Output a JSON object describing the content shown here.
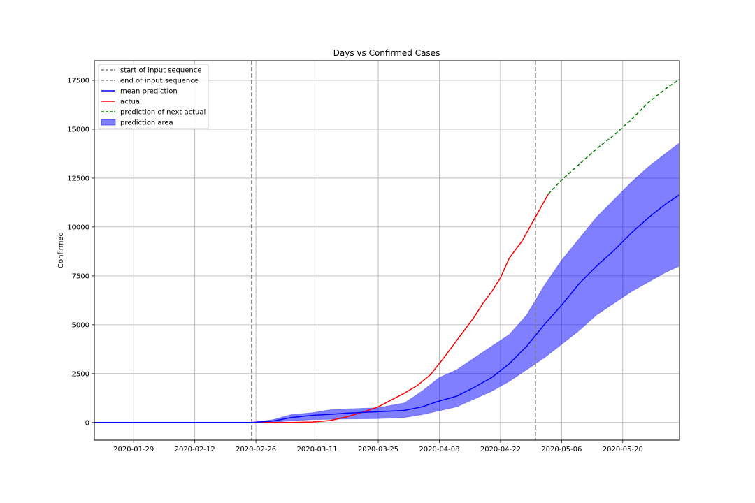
{
  "chart_data": {
    "type": "line",
    "title": "Days vs Confirmed Cases",
    "xlabel": "",
    "ylabel": "Confirmed",
    "x_axis": {
      "type": "date",
      "range": [
        "2020-01-20",
        "2020-06-02"
      ],
      "ticks": [
        "2020-01-29",
        "2020-02-12",
        "2020-02-26",
        "2020-03-11",
        "2020-03-25",
        "2020-04-08",
        "2020-04-22",
        "2020-05-06",
        "2020-05-20"
      ]
    },
    "y_axis": {
      "range": [
        -900,
        18500
      ],
      "ticks": [
        0,
        2500,
        5000,
        7500,
        10000,
        12500,
        15000,
        17500
      ],
      "tick_labels": [
        "0",
        "2500",
        "5000",
        "7500",
        "10000",
        "12500",
        "15000",
        "17500"
      ]
    },
    "grid": true,
    "legend_position": "top-left",
    "vertical_lines": [
      {
        "name": "start of input sequence",
        "x": "2020-02-25",
        "color": "#808080",
        "style": "dashed"
      },
      {
        "name": "end of input sequence",
        "x": "2020-04-30",
        "color": "#808080",
        "style": "dashed"
      }
    ],
    "series": [
      {
        "name": "actual",
        "color": "#ff0000",
        "style": "solid",
        "points": [
          [
            "2020-01-20",
            0
          ],
          [
            "2020-02-25",
            0
          ],
          [
            "2020-03-05",
            5
          ],
          [
            "2020-03-10",
            25
          ],
          [
            "2020-03-14",
            100
          ],
          [
            "2020-03-18",
            300
          ],
          [
            "2020-03-21",
            500
          ],
          [
            "2020-03-25",
            800
          ],
          [
            "2020-03-28",
            1150
          ],
          [
            "2020-03-31",
            1500
          ],
          [
            "2020-04-03",
            1900
          ],
          [
            "2020-04-06",
            2450
          ],
          [
            "2020-04-09",
            3300
          ],
          [
            "2020-04-11",
            3900
          ],
          [
            "2020-04-14",
            4800
          ],
          [
            "2020-04-16",
            5400
          ],
          [
            "2020-04-18",
            6100
          ],
          [
            "2020-04-20",
            6700
          ],
          [
            "2020-04-22",
            7400
          ],
          [
            "2020-04-24",
            8400
          ],
          [
            "2020-04-27",
            9300
          ],
          [
            "2020-04-29",
            10100
          ],
          [
            "2020-05-01",
            10900
          ],
          [
            "2020-05-03",
            11700
          ]
        ]
      },
      {
        "name": "prediction of next actual",
        "color": "#008000",
        "style": "dashed",
        "points": [
          [
            "2020-05-03",
            11700
          ],
          [
            "2020-05-06",
            12400
          ],
          [
            "2020-05-10",
            13200
          ],
          [
            "2020-05-14",
            14000
          ],
          [
            "2020-05-18",
            14700
          ],
          [
            "2020-05-22",
            15500
          ],
          [
            "2020-05-26",
            16400
          ],
          [
            "2020-05-30",
            17100
          ],
          [
            "2020-06-02",
            17550
          ]
        ]
      },
      {
        "name": "mean prediction",
        "color": "#0000ff",
        "style": "solid",
        "points": [
          [
            "2020-01-20",
            0
          ],
          [
            "2020-02-25",
            0
          ],
          [
            "2020-03-01",
            80
          ],
          [
            "2020-03-05",
            250
          ],
          [
            "2020-03-10",
            370
          ],
          [
            "2020-03-14",
            420
          ],
          [
            "2020-03-18",
            480
          ],
          [
            "2020-03-25",
            550
          ],
          [
            "2020-03-31",
            620
          ],
          [
            "2020-04-04",
            800
          ],
          [
            "2020-04-08",
            1100
          ],
          [
            "2020-04-12",
            1350
          ],
          [
            "2020-04-16",
            1800
          ],
          [
            "2020-04-20",
            2300
          ],
          [
            "2020-04-24",
            3000
          ],
          [
            "2020-04-28",
            3900
          ],
          [
            "2020-05-02",
            5000
          ],
          [
            "2020-05-06",
            6000
          ],
          [
            "2020-05-10",
            7100
          ],
          [
            "2020-05-14",
            8000
          ],
          [
            "2020-05-18",
            8800
          ],
          [
            "2020-05-22",
            9700
          ],
          [
            "2020-05-26",
            10500
          ],
          [
            "2020-05-30",
            11200
          ],
          [
            "2020-06-02",
            11650
          ]
        ]
      }
    ],
    "band": {
      "name": "prediction area",
      "color": "#0000ff",
      "opacity": 0.5,
      "x": [
        "2020-01-20",
        "2020-02-25",
        "2020-03-01",
        "2020-03-05",
        "2020-03-10",
        "2020-03-14",
        "2020-03-18",
        "2020-03-25",
        "2020-03-31",
        "2020-04-04",
        "2020-04-08",
        "2020-04-12",
        "2020-04-16",
        "2020-04-20",
        "2020-04-24",
        "2020-04-28",
        "2020-05-02",
        "2020-05-06",
        "2020-05-10",
        "2020-05-14",
        "2020-05-18",
        "2020-05-22",
        "2020-05-26",
        "2020-05-30",
        "2020-06-02"
      ],
      "lower": [
        0,
        0,
        20,
        80,
        150,
        160,
        180,
        200,
        250,
        400,
        600,
        800,
        1200,
        1600,
        2100,
        2700,
        3300,
        4000,
        4700,
        5500,
        6100,
        6700,
        7200,
        7700,
        8000
      ],
      "upper": [
        0,
        0,
        150,
        400,
        500,
        650,
        700,
        750,
        1000,
        1600,
        2300,
        2700,
        3300,
        3900,
        4500,
        5500,
        7000,
        8300,
        9400,
        10500,
        11400,
        12300,
        13100,
        13800,
        14300
      ]
    },
    "legend": [
      {
        "label": "start of input sequence",
        "color": "#808080",
        "kind": "dashed-line"
      },
      {
        "label": "end of input sequence",
        "color": "#808080",
        "kind": "dashed-line"
      },
      {
        "label": "mean prediction",
        "color": "#0000ff",
        "kind": "line"
      },
      {
        "label": "actual",
        "color": "#ff0000",
        "kind": "line"
      },
      {
        "label": "prediction of next actual",
        "color": "#008000",
        "kind": "dashed-line"
      },
      {
        "label": "prediction area",
        "color": "#0000ff",
        "kind": "patch"
      }
    ]
  }
}
